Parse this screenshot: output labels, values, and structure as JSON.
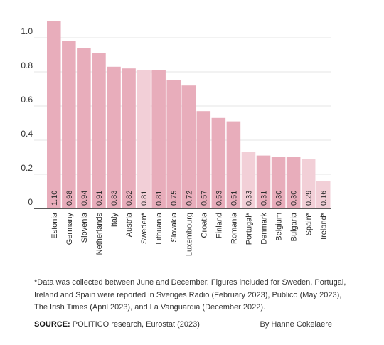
{
  "chart_data": {
    "type": "bar",
    "categories": [
      "Estonia",
      "Germany",
      "Slovenia",
      "Netherlands",
      "Italy",
      "Austria",
      "Sweden*",
      "Lithuania",
      "Slovakia",
      "Luxembourg",
      "Croatia",
      "Finland",
      "Romania",
      "Portugal*",
      "Denmark",
      "Belgium",
      "Bulgaria",
      "Spain*",
      "Ireland*"
    ],
    "values": [
      1.1,
      0.98,
      0.94,
      0.91,
      0.83,
      0.82,
      0.81,
      0.81,
      0.75,
      0.72,
      0.57,
      0.53,
      0.51,
      0.33,
      0.31,
      0.3,
      0.3,
      0.29,
      0.16
    ],
    "value_labels": [
      "1.10",
      "0.98",
      "0.94",
      "0.91",
      "0.83",
      "0.82",
      "0.81",
      "0.81",
      "0.75",
      "0.72",
      "0.57",
      "0.53",
      "0.51",
      "0.33",
      "0.31",
      "0.30",
      "0.30",
      "0.29",
      "0.16"
    ],
    "highlighted": [
      false,
      false,
      false,
      false,
      false,
      false,
      true,
      false,
      false,
      false,
      false,
      false,
      false,
      true,
      false,
      false,
      false,
      true,
      true
    ],
    "yticks": [
      0,
      0.2,
      0.4,
      0.6,
      0.8,
      1.0
    ],
    "ytick_labels": [
      "0",
      "0.2",
      "0.4",
      "0.6",
      "0.8",
      "1.0"
    ],
    "ylim": [
      0,
      1.1
    ],
    "grid": true,
    "colors": {
      "bar": "#e8adbb",
      "bar_highlight": "#f2cfd7",
      "grid": "#e4e4e4",
      "axis": "#222222"
    }
  },
  "footnote": "*Data was collected between June and December. Figures included for Sweden, Portugal, Ireland and Spain were reported in Sveriges Radio (February 2023), Público (May 2023), The Irish Times (April 2023), and La Vanguardia (December 2022).",
  "source": {
    "label": "SOURCE:",
    "text": "POLITICO research, Eurostat (2023)"
  },
  "byline": "By Hanne Cokelaere"
}
